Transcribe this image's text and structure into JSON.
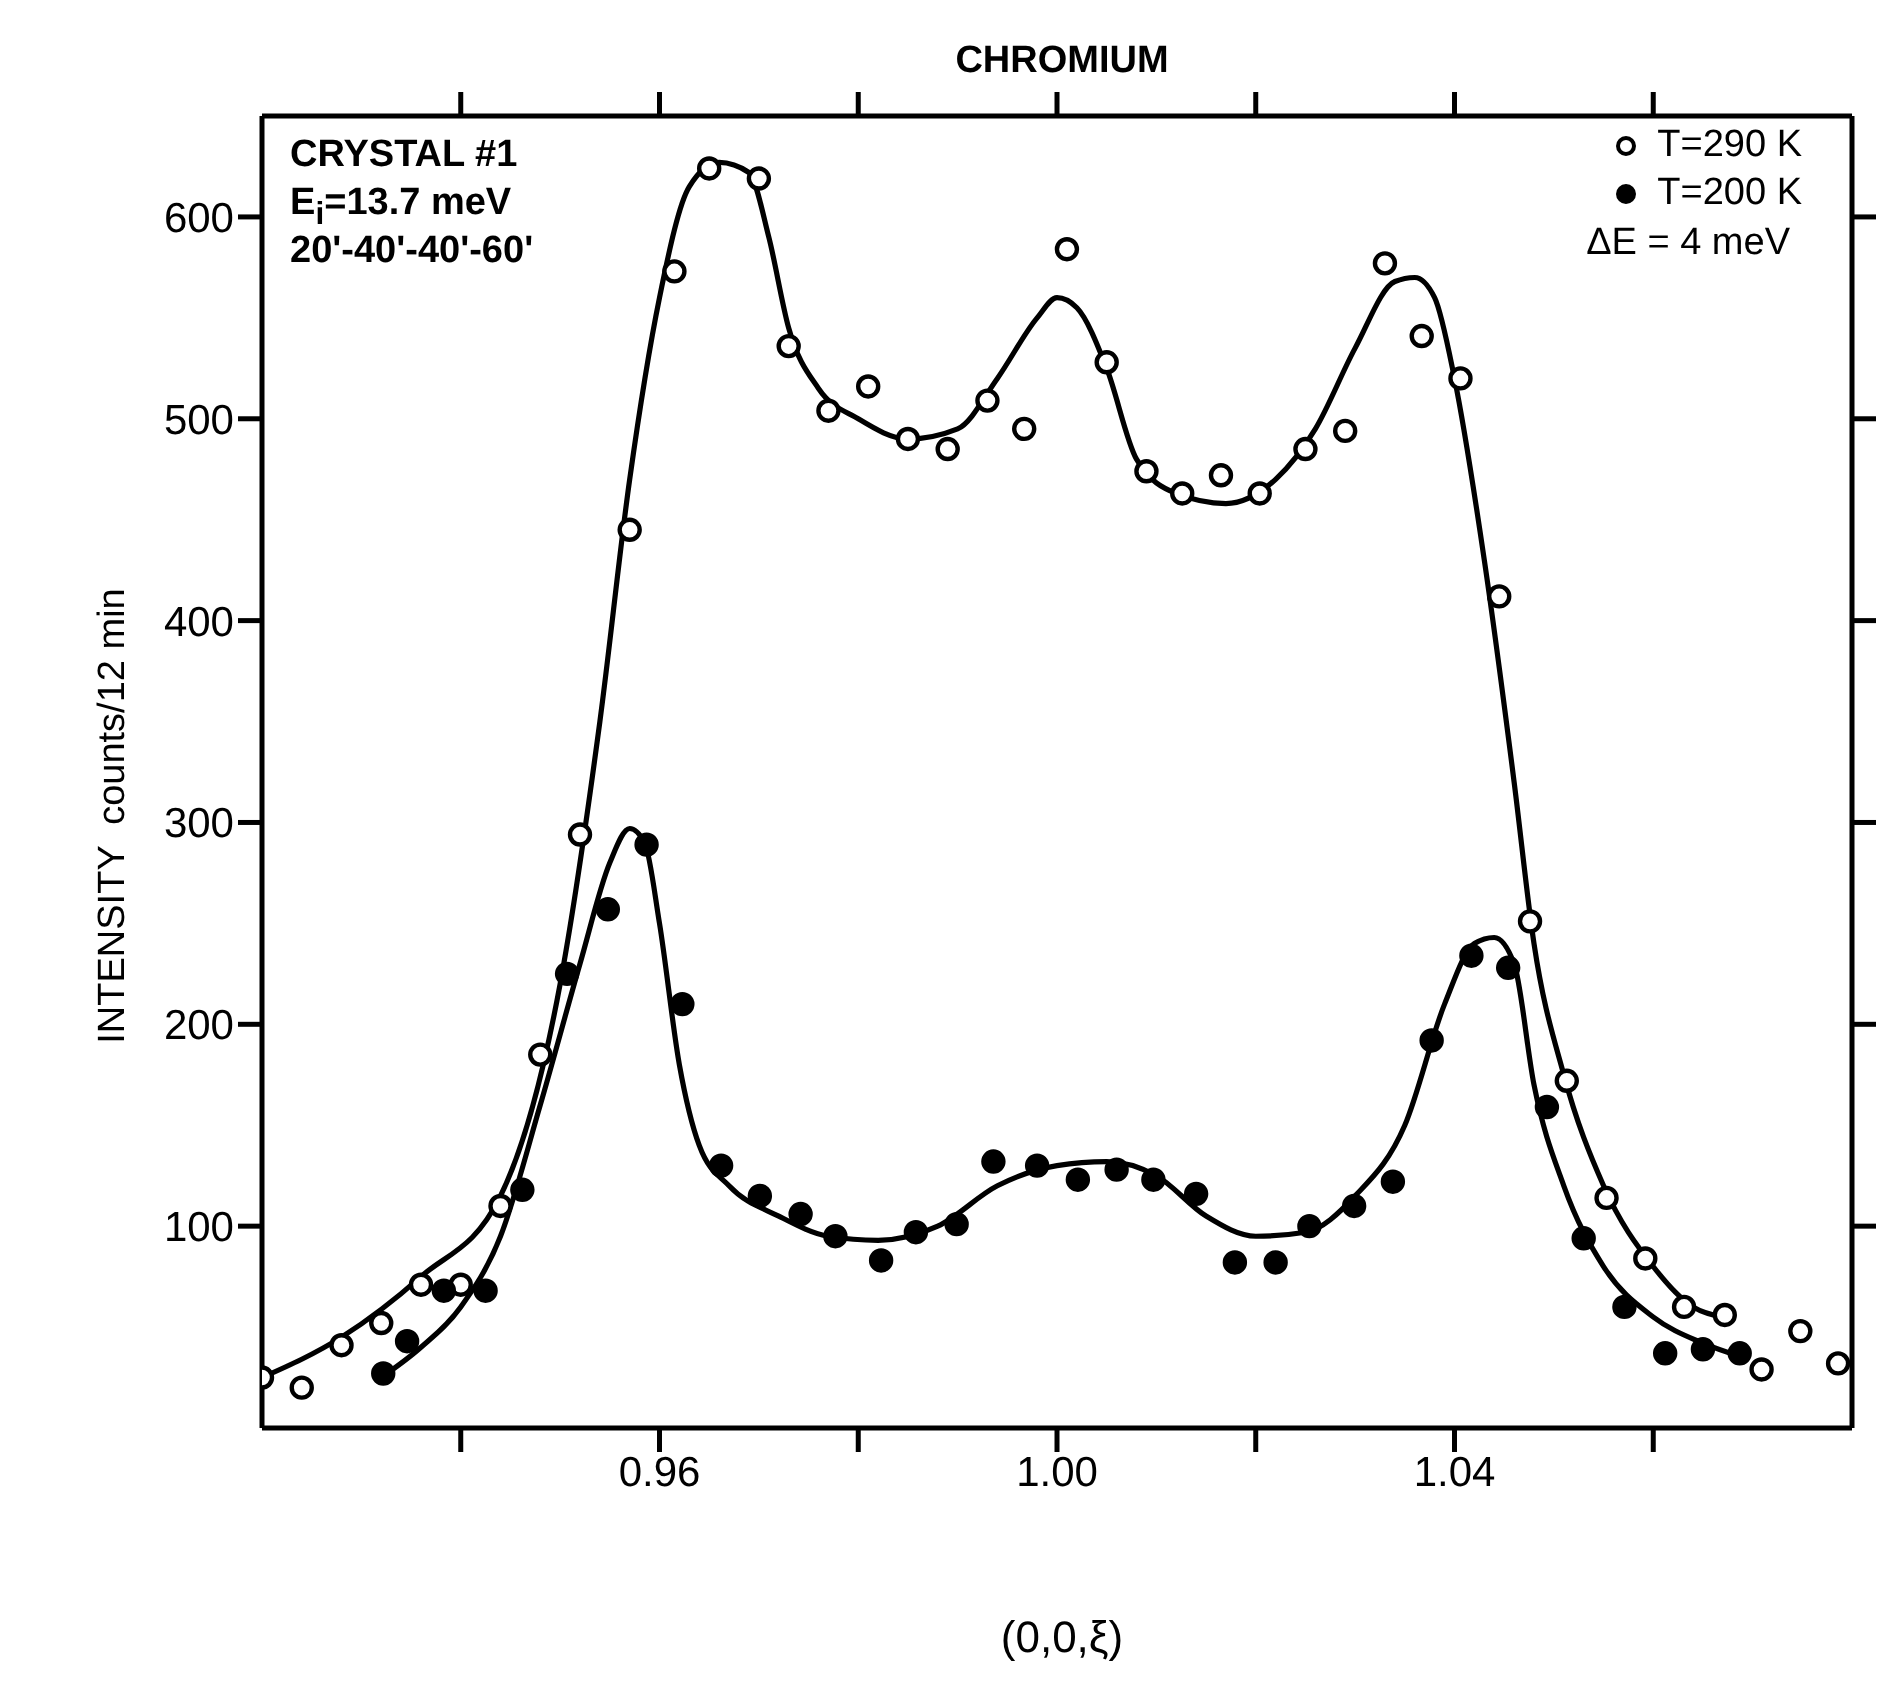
{
  "chart_data": {
    "type": "scatter",
    "title": "CHROMIUM",
    "xlabel": "(0,0,ξ)",
    "ylabel": "INTENSITY  counts/12 min",
    "annotations": [
      "CRYSTAL  #1",
      "E$_{i}$=13.7 meV",
      "20'-40'-40'-60'",
      "ΔE = 4 meV"
    ],
    "xlim": [
      0.92,
      1.08
    ],
    "ylim": [
      0,
      650
    ],
    "xticks": [
      {
        "value": 0.94,
        "label": null
      },
      {
        "value": 0.96,
        "label": "0.96"
      },
      {
        "value": 0.98,
        "label": null
      },
      {
        "value": 1.0,
        "label": "1.00"
      },
      {
        "value": 1.02,
        "label": null
      },
      {
        "value": 1.04,
        "label": "1.04"
      },
      {
        "value": 1.06,
        "label": null
      }
    ],
    "yticks": [
      100,
      200,
      300,
      400,
      500,
      600
    ],
    "grid": false,
    "legend": "top right",
    "series": [
      {
        "name": "T=290 K",
        "marker": "circle",
        "color": "#ffffff",
        "x": [
          0.92,
          0.924,
          0.928,
          0.932,
          0.936,
          0.94,
          0.944,
          0.948,
          0.952,
          0.957,
          0.9615,
          0.965,
          0.97,
          0.973,
          0.977,
          0.981,
          0.985,
          0.989,
          0.993,
          0.9967,
          1.001,
          1.005,
          1.009,
          1.0126,
          1.0165,
          1.0204,
          1.025,
          1.029,
          1.033,
          1.0367,
          1.0406,
          1.0445,
          1.0476,
          1.0513,
          1.0553,
          1.0592,
          1.0631,
          1.0672,
          1.0709,
          1.0748,
          1.0786
        ],
        "values": [
          25,
          20,
          41,
          52,
          71,
          71,
          110,
          185,
          294,
          445,
          573,
          624,
          619,
          536,
          504,
          516,
          490,
          485,
          509,
          495,
          584,
          528,
          474,
          463,
          472,
          463,
          485,
          494,
          577,
          541,
          520,
          412,
          251,
          172,
          114,
          84,
          60,
          56,
          29,
          48,
          32
        ]
      },
      {
        "name": "T=200 K",
        "marker": "circle",
        "color": "#000000",
        "x": [
          0.9322,
          0.9346,
          0.9383,
          0.9425,
          0.9462,
          0.9507,
          0.9548,
          0.9587,
          0.9623,
          0.9662,
          0.9701,
          0.9742,
          0.9777,
          0.9823,
          0.9858,
          0.9899,
          0.9936,
          0.998,
          1.0021,
          1.006,
          1.0097,
          1.014,
          1.0179,
          1.022,
          1.0254,
          1.0299,
          1.0338,
          1.0377,
          1.0417,
          1.0454,
          1.0493,
          1.053,
          1.0571,
          1.0612,
          1.065,
          1.0687
        ],
        "values": [
          27,
          43,
          68,
          68,
          118,
          225,
          257,
          289,
          210,
          130,
          115,
          106,
          95,
          83,
          97,
          101,
          132,
          130,
          123,
          128,
          123,
          116,
          82,
          82,
          100,
          110,
          122,
          192,
          234,
          228,
          159,
          94,
          60,
          37,
          39,
          37
        ]
      },
      {
        "type": "line",
        "color": "#000000",
        "line_style": "solid",
        "x": [
          0.92,
          0.928,
          0.936,
          0.944,
          0.95,
          0.954,
          0.957,
          0.96,
          0.963,
          0.966,
          0.969,
          0.971,
          0.973,
          0.976,
          0.98,
          0.985,
          0.99,
          0.994,
          0.998,
          1.0,
          1.002,
          1.005,
          1.008,
          1.012,
          1.017,
          1.022,
          1.026,
          1.03,
          1.034,
          1.036,
          1.038,
          1.04,
          1.043,
          1.046,
          1.048,
          1.051,
          1.055,
          1.06,
          1.064,
          1.067
        ],
        "values": [
          25,
          45,
          75,
          115,
          220,
          350,
          470,
          560,
          615,
          627,
          622,
          590,
          545,
          515,
          500,
          490,
          495,
          520,
          550,
          560,
          555,
          525,
          480,
          463,
          458,
          470,
          495,
          535,
          568,
          570,
          560,
          520,
          430,
          320,
          240,
          175,
          120,
          80,
          60,
          55
        ]
      },
      {
        "type": "line",
        "color": "#000000",
        "line_style": "solid",
        "x": [
          0.932,
          0.936,
          0.94,
          0.944,
          0.948,
          0.952,
          0.955,
          0.957,
          0.9585,
          0.96,
          0.962,
          0.964,
          0.967,
          0.972,
          0.977,
          0.982,
          0.988,
          0.994,
          1.0,
          1.005,
          1.01,
          1.015,
          1.02,
          1.025,
          1.03,
          1.035,
          1.039,
          1.042,
          1.044,
          1.046,
          1.048,
          1.051,
          1.055,
          1.06,
          1.065,
          1.069
        ],
        "values": [
          25,
          40,
          60,
          95,
          160,
          230,
          280,
          297,
          290,
          250,
          180,
          140,
          120,
          105,
          95,
          93,
          100,
          120,
          130,
          132,
          125,
          105,
          95,
          97,
          115,
          150,
          210,
          240,
          243,
          230,
          170,
          120,
          80,
          55,
          42,
          35
        ]
      }
    ]
  }
}
